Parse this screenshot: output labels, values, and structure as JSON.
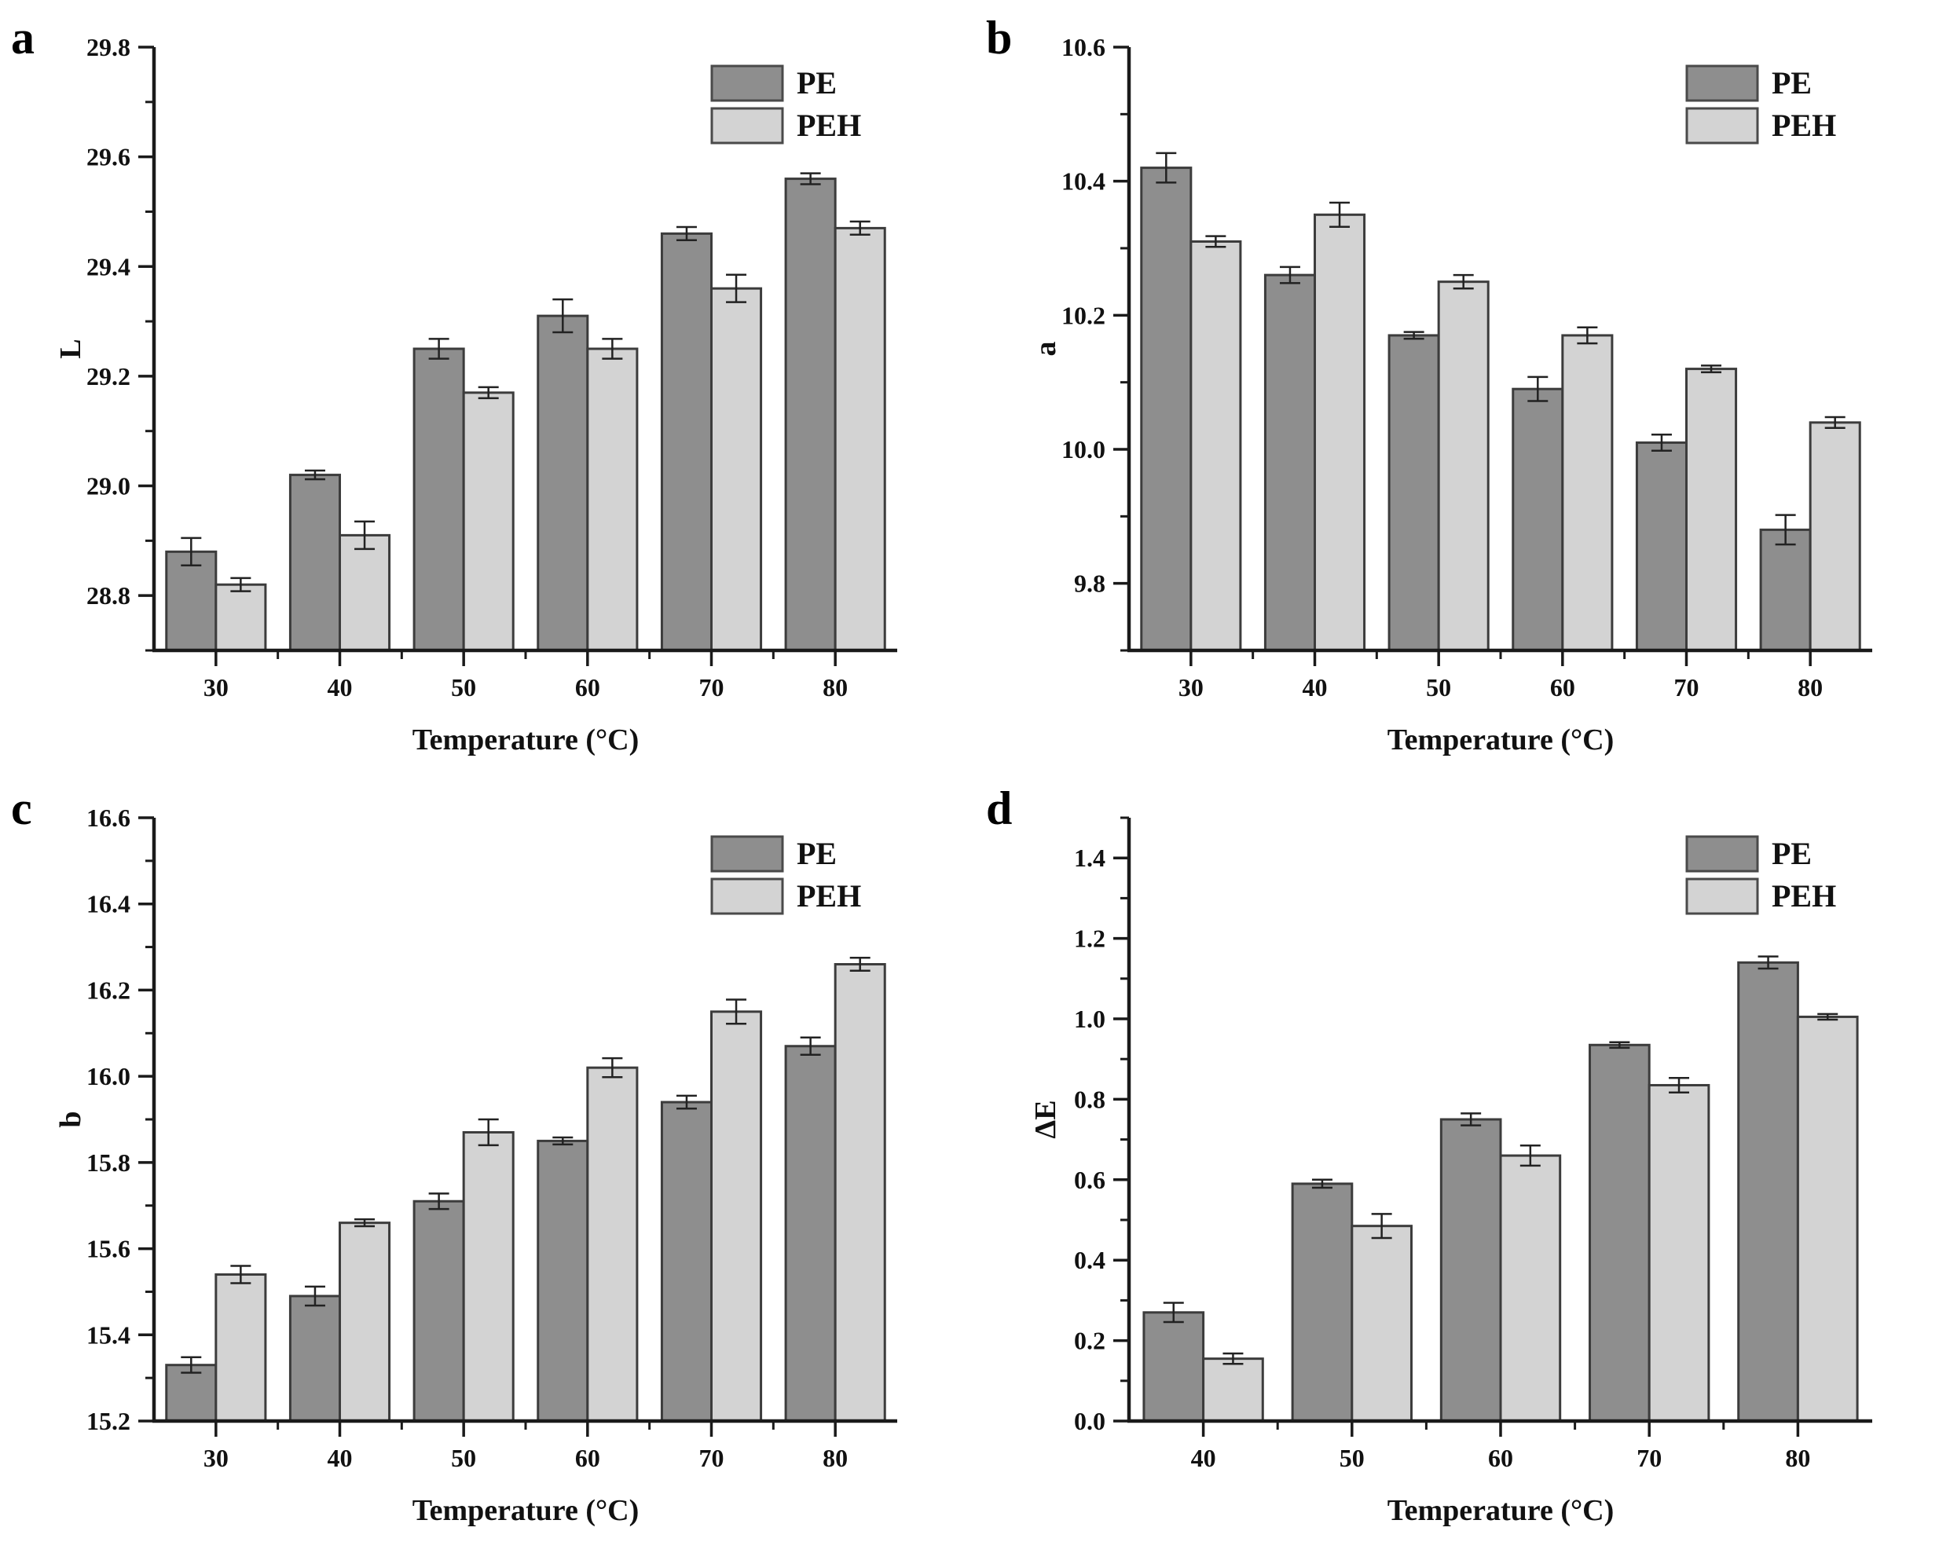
{
  "figure": {
    "background": "#ffffff",
    "colors": {
      "pe_fill": "#8e8e8e",
      "peh_fill": "#d3d3d3",
      "bar_stroke": "#3c3c3c",
      "legend_stroke": "#4a4a4a",
      "axis": "#1a1a1a",
      "error_bar": "#222222",
      "text": "#111111"
    },
    "legend": {
      "items": [
        "PE",
        "PEH"
      ],
      "position": "top-right"
    },
    "xlabel": "Temperature (°C)"
  },
  "chart_data": [
    {
      "type": "bar",
      "panel": "a",
      "title": "",
      "xlabel": "Temperature (°C)",
      "ylabel": "L",
      "categories": [
        "30",
        "40",
        "50",
        "60",
        "70",
        "80"
      ],
      "series": [
        {
          "name": "PE",
          "values": [
            28.88,
            29.02,
            29.25,
            29.31,
            29.46,
            29.56
          ],
          "errors": [
            0.025,
            0.008,
            0.018,
            0.03,
            0.012,
            0.01
          ]
        },
        {
          "name": "PEH",
          "values": [
            28.82,
            28.91,
            29.17,
            29.25,
            29.36,
            29.47
          ],
          "errors": [
            0.012,
            0.025,
            0.01,
            0.018,
            0.025,
            0.012
          ]
        }
      ],
      "ylim": [
        28.7,
        29.8
      ],
      "yticks": {
        "start": 28.8,
        "end": 29.8,
        "step": 0.2,
        "minor_step": 0.1
      },
      "grid": false,
      "legend_position": "top-right"
    },
    {
      "type": "bar",
      "panel": "b",
      "title": "",
      "xlabel": "Temperature (°C)",
      "ylabel": "a",
      "categories": [
        "30",
        "40",
        "50",
        "60",
        "70",
        "80"
      ],
      "series": [
        {
          "name": "PE",
          "values": [
            10.42,
            10.26,
            10.17,
            10.09,
            10.01,
            9.88
          ],
          "errors": [
            0.022,
            0.012,
            0.005,
            0.018,
            0.012,
            0.022
          ]
        },
        {
          "name": "PEH",
          "values": [
            10.31,
            10.35,
            10.25,
            10.17,
            10.12,
            10.04
          ],
          "errors": [
            0.008,
            0.018,
            0.01,
            0.012,
            0.005,
            0.008
          ]
        }
      ],
      "ylim": [
        9.7,
        10.6
      ],
      "yticks": {
        "start": 9.8,
        "end": 10.6,
        "step": 0.2,
        "minor_step": 0.1
      },
      "grid": false,
      "legend_position": "top-right"
    },
    {
      "type": "bar",
      "panel": "c",
      "title": "",
      "xlabel": "Temperature (°C)",
      "ylabel": "b",
      "categories": [
        "30",
        "40",
        "50",
        "60",
        "70",
        "80"
      ],
      "series": [
        {
          "name": "PE",
          "values": [
            15.33,
            15.49,
            15.71,
            15.85,
            15.94,
            16.07
          ],
          "errors": [
            0.018,
            0.022,
            0.018,
            0.008,
            0.015,
            0.02
          ]
        },
        {
          "name": "PEH",
          "values": [
            15.54,
            15.66,
            15.87,
            16.02,
            16.15,
            16.26
          ],
          "errors": [
            0.02,
            0.008,
            0.03,
            0.022,
            0.028,
            0.015
          ]
        }
      ],
      "ylim": [
        15.2,
        16.6
      ],
      "yticks": {
        "start": 15.2,
        "end": 16.6,
        "step": 0.2,
        "minor_step": 0.1
      },
      "grid": false,
      "legend_position": "top-right"
    },
    {
      "type": "bar",
      "panel": "d",
      "title": "",
      "xlabel": "Temperature (°C)",
      "ylabel": "ΔE",
      "categories": [
        "40",
        "50",
        "60",
        "70",
        "80"
      ],
      "series": [
        {
          "name": "PE",
          "values": [
            0.27,
            0.59,
            0.75,
            0.935,
            1.14
          ],
          "errors": [
            0.024,
            0.01,
            0.015,
            0.007,
            0.015
          ]
        },
        {
          "name": "PEH",
          "values": [
            0.155,
            0.485,
            0.66,
            0.835,
            1.005
          ],
          "errors": [
            0.013,
            0.03,
            0.025,
            0.018,
            0.007
          ]
        }
      ],
      "ylim": [
        0.0,
        1.5
      ],
      "yticks": {
        "start": 0.0,
        "end": 1.4,
        "step": 0.2,
        "minor_step": 0.1
      },
      "grid": false,
      "legend_position": "top-right"
    }
  ]
}
